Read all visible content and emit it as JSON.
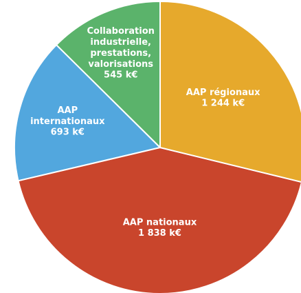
{
  "chart_data": {
    "type": "pie",
    "categories": [
      "Collaboration industrielle, prestations, valorisations",
      "AAP internationaux",
      "AAP nationaux",
      "AAP régionaux"
    ],
    "values": [
      545,
      693,
      1838,
      1244
    ],
    "value_labels": [
      "545 k€",
      "693 k€",
      "1 838 k€",
      "1 244 k€"
    ],
    "colors": [
      "#5bb36b",
      "#52a7de",
      "#c9452c",
      "#e6a92c"
    ]
  }
}
